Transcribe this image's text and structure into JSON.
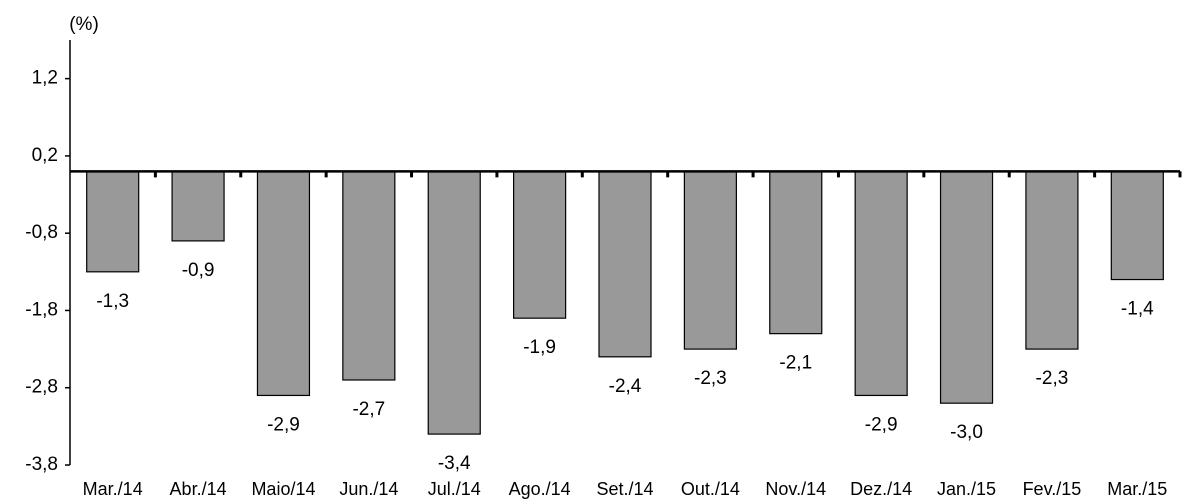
{
  "chart_data": {
    "type": "bar",
    "y_label": "(%)",
    "categories": [
      "Mar./14",
      "Abr./14",
      "Maio/14",
      "Jun./14",
      "Jul./14",
      "Ago./14",
      "Set./14",
      "Out./14",
      "Nov./14",
      "Dez./14",
      "Jan./15",
      "Fev./15",
      "Mar./15"
    ],
    "values": [
      -1.3,
      -0.9,
      -2.9,
      -2.7,
      -3.4,
      -1.9,
      -2.4,
      -2.3,
      -2.1,
      -2.9,
      -3.0,
      -2.3,
      -1.4
    ],
    "value_labels": [
      "-1,3",
      "-0,9",
      "-2,9",
      "-2,7",
      "-3,4",
      "-1,9",
      "-2,4",
      "-2,3",
      "-2,1",
      "-2,9",
      "-3,0",
      "-2,3",
      "-1,4"
    ],
    "color": "#999999",
    "ylim": [
      -3.8,
      1.7
    ],
    "yticks": [
      {
        "value": 1.2,
        "label": "1,2"
      },
      {
        "value": 0.2,
        "label": "0,2"
      },
      {
        "value": -0.8,
        "label": "-0,8"
      },
      {
        "value": -1.8,
        "label": "-1,8"
      },
      {
        "value": -2.8,
        "label": "-2,8"
      },
      {
        "value": -3.8,
        "label": "-3,8"
      }
    ]
  }
}
